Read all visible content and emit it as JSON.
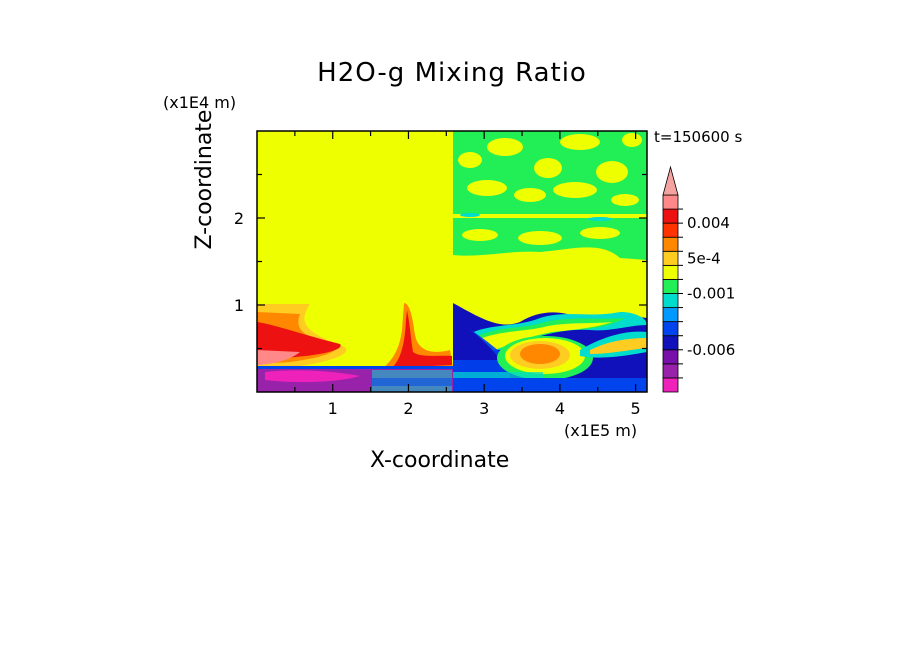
{
  "chart_data": {
    "type": "heatmap",
    "title": "H2O-g Mixing Ratio",
    "xlabel": "X-coordinate",
    "ylabel": "Z-coordinate",
    "x_scale_label": "(x1E5 m)",
    "z_scale_label": "(x1E4 m)",
    "timestamp": "t=150600 s",
    "xlim": [
      0,
      5.15
    ],
    "ylim": [
      0,
      3.0
    ],
    "x_ticks": [
      {
        "value": 1,
        "label": "1"
      },
      {
        "value": 2,
        "label": "2"
      },
      {
        "value": 3,
        "label": "3"
      },
      {
        "value": 4,
        "label": "4"
      },
      {
        "value": 5,
        "label": "5"
      }
    ],
    "z_ticks": [
      {
        "value": 1,
        "label": "1"
      },
      {
        "value": 2,
        "label": "2"
      }
    ],
    "colorbar": {
      "levels": 14,
      "colors": [
        "#ee22bb",
        "#9922aa",
        "#7711aa",
        "#1111bb",
        "#0044ee",
        "#0099ff",
        "#00ddcc",
        "#22ee55",
        "#eeff00",
        "#ffcc22",
        "#ff8800",
        "#ff3300",
        "#ee1111",
        "#ff8888"
      ],
      "over_color": "#f5a3a0",
      "labels": [
        {
          "text": "-0.006",
          "level": 3
        },
        {
          "text": "-0.001",
          "level": 7
        },
        {
          "text": "5e-4",
          "level": 9.5
        },
        {
          "text": "0.004",
          "level": 12
        }
      ]
    },
    "regions": [
      {
        "name": "background",
        "color": "#eeff00",
        "x": [
          0,
          5.15
        ],
        "z": [
          0,
          3.0
        ]
      },
      {
        "name": "upper-right-turbulence",
        "color": "#22ee55",
        "x": [
          2.55,
          5.15
        ],
        "z": [
          1.55,
          3.0
        ]
      },
      {
        "name": "left-moist-layer",
        "color": "#ff8800",
        "x": [
          0,
          0.9
        ],
        "z": [
          0.3,
          1.0
        ]
      },
      {
        "name": "left-moist-core",
        "color": "#ee1111",
        "x": [
          0,
          0.7
        ],
        "z": [
          0.35,
          0.65
        ]
      },
      {
        "name": "central-plume",
        "color": "#ee1111",
        "x": [
          1.85,
          2.1
        ],
        "z": [
          0.3,
          1.0
        ]
      },
      {
        "name": "left-dry-surface",
        "color": "#9922aa",
        "x": [
          0,
          2.55
        ],
        "z": [
          0,
          0.3
        ]
      },
      {
        "name": "right-dry-layer",
        "color": "#1111bb",
        "x": [
          2.55,
          5.15
        ],
        "z": [
          0,
          0.95
        ]
      },
      {
        "name": "right-moist-blob",
        "color": "#ffcc22",
        "x": [
          3.3,
          4.2
        ],
        "z": [
          0.2,
          0.65
        ]
      }
    ]
  }
}
